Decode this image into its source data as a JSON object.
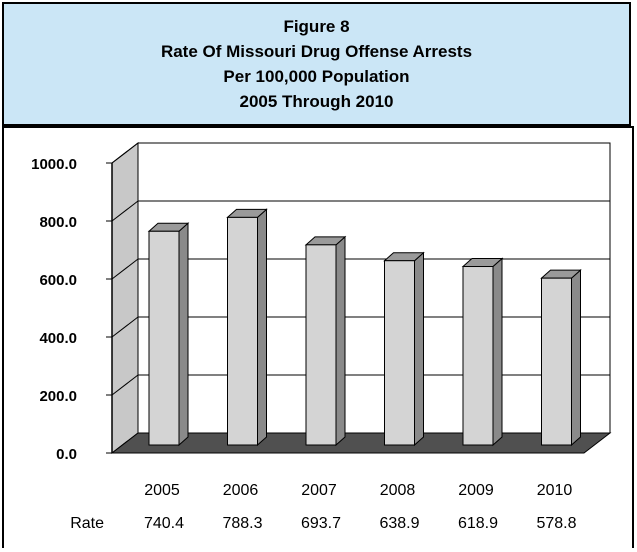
{
  "title": {
    "line1": "Figure 8",
    "line2": "Rate Of Missouri Drug Offense Arrests",
    "line3": "Per 100,000 Population",
    "line4": "2005 Through 2010"
  },
  "chart_data": {
    "type": "bar",
    "categories": [
      "2005",
      "2006",
      "2007",
      "2008",
      "2009",
      "2010"
    ],
    "series": [
      {
        "name": "Rate",
        "values": [
          740.4,
          788.3,
          693.7,
          638.9,
          618.9,
          578.8
        ]
      }
    ],
    "value_labels": [
      "740.4",
      "788.3",
      "693.7",
      "638.9",
      "618.9",
      "578.8"
    ],
    "row_label": "Rate",
    "yticks": [
      "0.0",
      "200.0",
      "400.0",
      "600.0",
      "800.0",
      "1000.0"
    ],
    "ylim": [
      0,
      1000
    ],
    "grid": true,
    "style": "3d-column",
    "colors": {
      "bar": "#d4d4d4",
      "bar_side": "#8a8a8a",
      "floor": "#505050",
      "wall": "#c8c8c8",
      "grid": "#000000"
    }
  }
}
